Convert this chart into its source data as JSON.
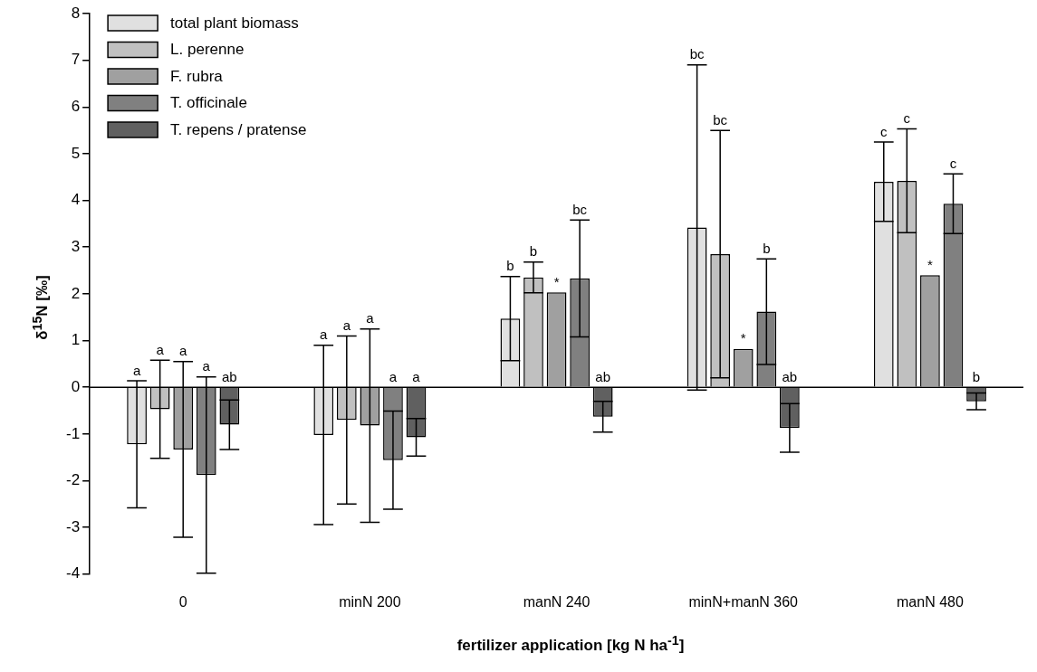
{
  "chart_data": {
    "type": "bar",
    "xlabel": "fertilizer application [kg N ha$^{-1}$]",
    "ylabel": "δ$^{15}$N [‰]",
    "categories": [
      "0",
      "minN 200",
      "manN 240",
      "minN+manN 360",
      "manN 480"
    ],
    "series": [
      {
        "name": "total plant biomass",
        "color": "#e0e0e0",
        "values": [
          -1.22,
          -1.02,
          1.47,
          3.42,
          4.4
        ],
        "errors": [
          1.36,
          1.92,
          0.9,
          3.48,
          0.85
        ]
      },
      {
        "name": "L. perenne",
        "color": "#c0c0c0",
        "values": [
          -0.47,
          -0.7,
          2.35,
          2.85,
          4.42
        ],
        "errors": [
          1.05,
          1.8,
          0.33,
          2.65,
          1.11
        ]
      },
      {
        "name": "F. rubra",
        "color": "#a0a0a0",
        "values": [
          -1.33,
          -0.82,
          2.03,
          0.82,
          2.4
        ],
        "errors": [
          1.88,
          2.07,
          null,
          null,
          null
        ]
      },
      {
        "name": "T. officinale",
        "color": "#808080",
        "values": [
          -1.88,
          -1.56,
          2.33,
          1.62,
          3.93
        ],
        "errors": [
          2.1,
          1.05,
          1.25,
          1.13,
          0.64
        ]
      },
      {
        "name": "T. repens / pratense",
        "color": "#606060",
        "values": [
          -0.8,
          -1.07,
          -0.63,
          -0.87,
          -0.3
        ],
        "errors": [
          0.53,
          0.4,
          0.33,
          0.52,
          0.18
        ]
      }
    ],
    "ylim": [
      -4,
      8
    ],
    "yticks": [
      -4,
      -3,
      -2,
      -1,
      0,
      1,
      2,
      3,
      4,
      5,
      6,
      7,
      8
    ],
    "grid": false,
    "legend": "top left",
    "ref_lines": [
      {
        "axis": "y",
        "value": 0,
        "color": "#000000"
      }
    ],
    "annotations": [
      "a",
      "a",
      "a",
      "a",
      "ab",
      "a",
      "a",
      "a",
      "a",
      "a",
      "b",
      "b",
      "*",
      "bc",
      "ab",
      "bc",
      "bc",
      "*",
      "b",
      "ab",
      "c",
      "c",
      "*",
      "c",
      "b"
    ]
  }
}
